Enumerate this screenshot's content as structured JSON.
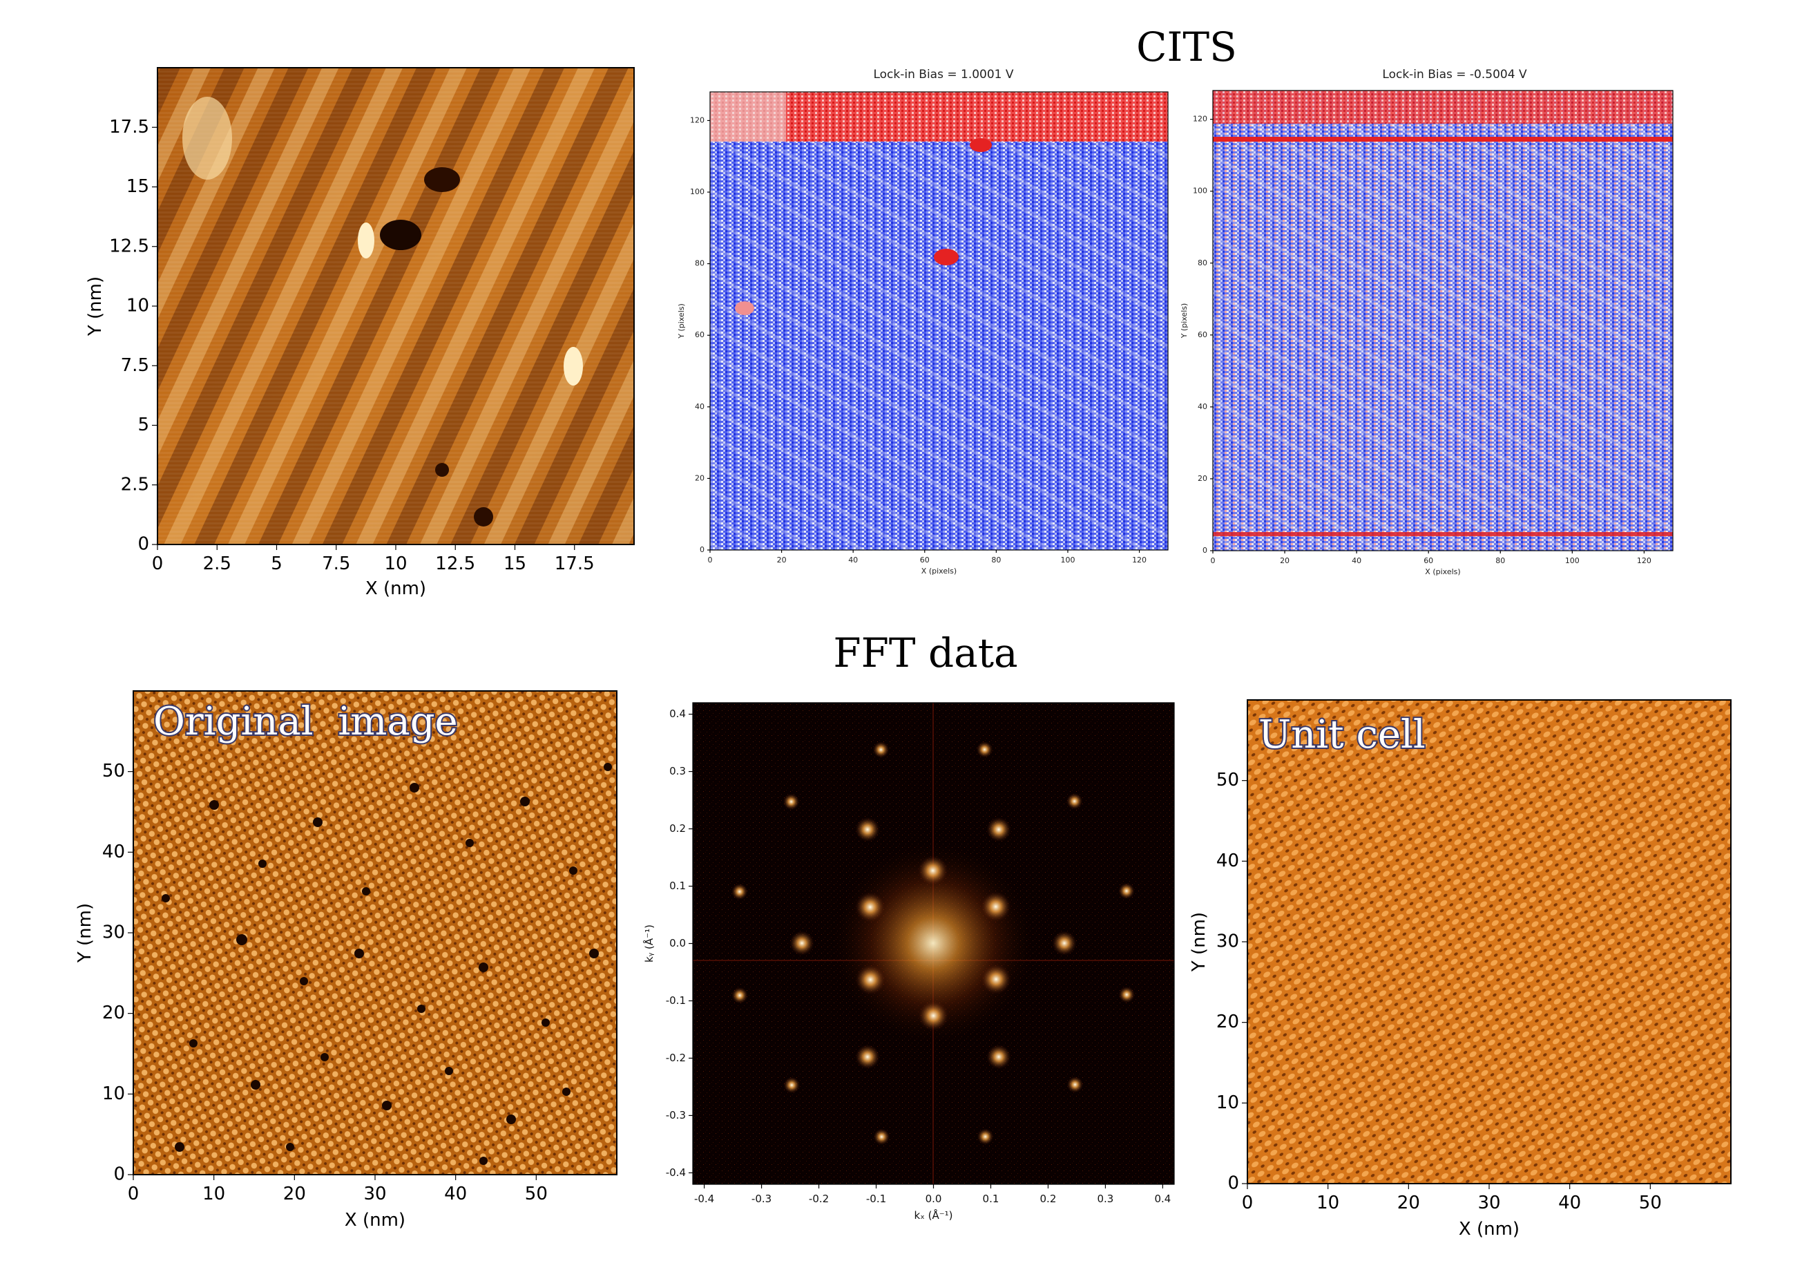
{
  "sections": {
    "cits_title": "CITS",
    "fft_title": "FFT data"
  },
  "colors": {
    "afmhot_dark": "#6b2e05",
    "afmhot_mid": "#c8741e",
    "afmhot_light": "#f2c27a",
    "bwr_blue": "#2b3ee6",
    "bwr_white": "#f2f2f5",
    "bwr_red": "#e52222",
    "fft_bg": "#0a0000"
  },
  "chart_data": [
    {
      "type": "heatmap",
      "id": "topography",
      "title": "",
      "xlabel": "X (nm)",
      "ylabel": "Y (nm)",
      "xlim": [
        0,
        20
      ],
      "ylim": [
        0,
        20
      ],
      "xticks": [
        "0",
        "2.5",
        "5",
        "7.5",
        "10",
        "12.5",
        "15",
        "17.5"
      ],
      "yticks": [
        "0",
        "2.5",
        "5",
        "7.5",
        "10",
        "12.5",
        "15",
        "17.5"
      ],
      "colormap": "afmhot"
    },
    {
      "type": "heatmap",
      "id": "cits-bias-positive",
      "title": "Lock-in   Bias = 1.0001 V",
      "xlabel": "X (pixels)",
      "ylabel": "Y (pixels)",
      "xlim": [
        0,
        128
      ],
      "ylim": [
        0,
        128
      ],
      "xticks": [
        "0",
        "20",
        "40",
        "60",
        "80",
        "100",
        "120"
      ],
      "yticks": [
        "0",
        "20",
        "40",
        "60",
        "80",
        "100",
        "120"
      ],
      "colormap": "bwr"
    },
    {
      "type": "heatmap",
      "id": "cits-bias-negative",
      "title": "Lock-in   Bias = -0.5004 V",
      "xlabel": "X (pixels)",
      "ylabel": "Y (pixels)",
      "xlim": [
        0,
        128
      ],
      "ylim": [
        0,
        128
      ],
      "xticks": [
        "0",
        "20",
        "40",
        "60",
        "80",
        "100",
        "120"
      ],
      "yticks": [
        "0",
        "20",
        "40",
        "60",
        "80",
        "100",
        "120"
      ],
      "colormap": "bwr"
    },
    {
      "type": "heatmap",
      "id": "fft-original",
      "title": "",
      "annotation": "Original  image",
      "xlabel": "X (nm)",
      "ylabel": "Y (nm)",
      "xlim": [
        0,
        60
      ],
      "ylim": [
        0,
        60
      ],
      "xticks": [
        "0",
        "10",
        "20",
        "30",
        "40",
        "50"
      ],
      "yticks": [
        "0",
        "10",
        "20",
        "30",
        "40",
        "50"
      ],
      "colormap": "afmhot"
    },
    {
      "type": "heatmap",
      "id": "fft-spectrum",
      "title": "",
      "xlabel": "kₓ (Å⁻¹)",
      "ylabel": "kᵧ (Å⁻¹)",
      "xlim": [
        -0.42,
        0.42
      ],
      "ylim": [
        -0.42,
        0.42
      ],
      "xticks": [
        "-0.4",
        "-0.3",
        "-0.2",
        "-0.1",
        "0.0",
        "0.1",
        "0.2",
        "0.3",
        "0.4"
      ],
      "yticks": [
        "-0.4",
        "-0.3",
        "-0.2",
        "-0.1",
        "0.0",
        "0.1",
        "0.2",
        "0.3",
        "0.4"
      ],
      "colormap": "afmhot"
    },
    {
      "type": "heatmap",
      "id": "fft-unit-cell",
      "title": "",
      "annotation": "Unit cell",
      "xlabel": "X (nm)",
      "ylabel": "Y (nm)",
      "xlim": [
        0,
        60
      ],
      "ylim": [
        0,
        60
      ],
      "xticks": [
        "0",
        "10",
        "20",
        "30",
        "40",
        "50"
      ],
      "yticks": [
        "0",
        "10",
        "20",
        "30",
        "40",
        "50"
      ],
      "colormap": "afmhot"
    }
  ]
}
